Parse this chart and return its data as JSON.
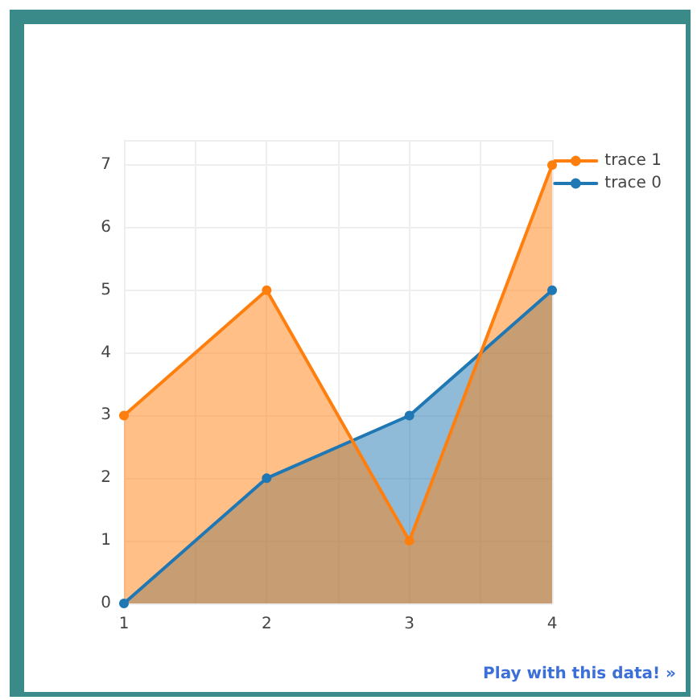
{
  "chart_data": {
    "type": "area",
    "x": [
      1,
      2,
      3,
      4
    ],
    "series": [
      {
        "name": "trace 0",
        "color": "#1f77b4",
        "values": [
          0,
          2,
          3,
          5
        ]
      },
      {
        "name": "trace 1",
        "color": "#ff7f0e",
        "values": [
          3,
          5,
          1,
          7
        ]
      }
    ],
    "xlim": [
      1,
      4
    ],
    "xticks": [
      1,
      2,
      3,
      4
    ],
    "ylim": [
      0,
      7.4
    ],
    "yticks": [
      0,
      1,
      2,
      3,
      4,
      5,
      6,
      7
    ],
    "grid": true,
    "legend": "top right",
    "marker": "circle",
    "line_style": "solid",
    "annotations": [
      "Play with this data! »"
    ]
  }
}
